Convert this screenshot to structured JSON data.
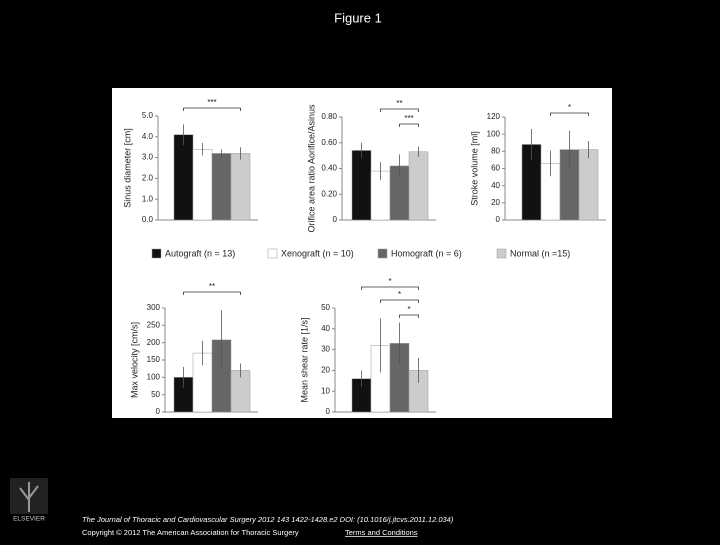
{
  "title": "Figure 1",
  "publisher": "ELSEVIER",
  "footer": {
    "citation": "The Journal of Thoracic and Cardiovascular Surgery 2012 143 1422-1428.e2 DOI: (10.1016/j.jtcvs.2011.12.034)",
    "copyright": "Copyright © 2012 The American Association for Thoracic Surgery",
    "link": "Terms and Conditions"
  },
  "legend": [
    {
      "name": "Autograft (n = 13)",
      "color": "#111111"
    },
    {
      "name": "Xenograft (n = 10)",
      "color": "#ffffff"
    },
    {
      "name": "Homograft (n = 6)",
      "color": "#666666"
    },
    {
      "name": "Normal (n =15)",
      "color": "#cccccc"
    }
  ],
  "chart_data": [
    {
      "type": "bar",
      "y_label": "Sinus diameter [cm]",
      "ylim": [
        0,
        5
      ],
      "yticks": [
        {
          "value": 0,
          "label": "0.0"
        },
        {
          "value": 1,
          "label": "1.0"
        },
        {
          "value": 2,
          "label": "2.0"
        },
        {
          "value": 3,
          "label": "3.0"
        },
        {
          "value": 4,
          "label": "4.0"
        },
        {
          "value": 5,
          "label": "5.0"
        }
      ],
      "values": [
        4.1,
        3.4,
        3.2,
        3.2
      ],
      "errors": [
        0.5,
        0.3,
        0.2,
        0.3
      ],
      "annotations": [
        "***"
      ]
    },
    {
      "type": "bar",
      "y_label": "Orifice area ratio Aorifice/Asinus",
      "ylim": [
        0,
        0.8
      ],
      "yticks": [
        0,
        {
          "value": 0.2,
          "label": "0.20"
        },
        {
          "value": 0.4,
          "label": "0.40"
        },
        {
          "value": 0.6,
          "label": "0.60"
        },
        {
          "value": 0.8,
          "label": "0.80"
        }
      ],
      "values": [
        0.54,
        0.38,
        0.42,
        0.53
      ],
      "errors": [
        0.06,
        0.07,
        0.09,
        0.04
      ],
      "annotations": [
        "**",
        "***"
      ]
    },
    {
      "type": "bar",
      "y_label": "Stroke volume [ml]",
      "ylim": [
        0,
        120
      ],
      "yticks": [
        0,
        20,
        40,
        60,
        80,
        100,
        120
      ],
      "values": [
        88,
        66,
        82,
        82
      ],
      "errors": [
        18,
        15,
        22,
        10
      ],
      "annotations": [
        "*"
      ]
    },
    {
      "type": "bar",
      "y_label": "Max velocity [cm/s]",
      "ylim": [
        0,
        300
      ],
      "yticks": [
        0,
        50,
        100,
        150,
        200,
        250,
        300
      ],
      "values": [
        100,
        170,
        208,
        120
      ],
      "errors": [
        30,
        35,
        85,
        20
      ],
      "annotations": [
        "**"
      ]
    },
    {
      "type": "bar",
      "y_label": "Mean shear rate [1/s]",
      "ylim": [
        0,
        50
      ],
      "yticks": [
        0,
        10,
        20,
        30,
        40,
        50
      ],
      "values": [
        16,
        32,
        33,
        20
      ],
      "errors": [
        4,
        13,
        10,
        6
      ],
      "annotations": [
        "*",
        "*",
        "*"
      ]
    }
  ]
}
